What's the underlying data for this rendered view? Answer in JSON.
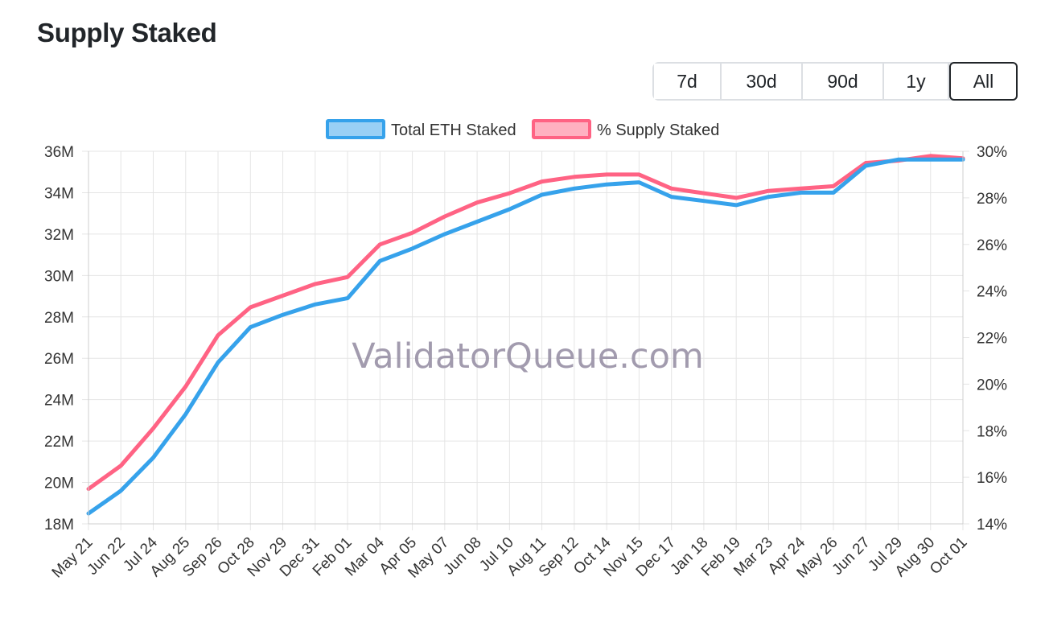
{
  "page": {
    "title": "Supply Staked"
  },
  "range_buttons": [
    {
      "label": "7d",
      "active": false
    },
    {
      "label": "30d",
      "active": false
    },
    {
      "label": "90d",
      "active": false
    },
    {
      "label": "1y",
      "active": false
    },
    {
      "label": "All",
      "active": true
    }
  ],
  "watermark": "ValidatorQueue.com",
  "colors": {
    "blue_line": "#36a2eb",
    "blue_fill": "#9ad0f5",
    "red_line": "#ff6384",
    "red_fill": "#ffb1c1",
    "grid": "#e5e5e5"
  },
  "chart_data": {
    "type": "line",
    "title": "Supply Staked",
    "x": [
      "May 21",
      "Jun 22",
      "Jul 24",
      "Aug 25",
      "Sep 26",
      "Oct 28",
      "Nov 29",
      "Dec 31",
      "Feb 01",
      "Mar 04",
      "Apr 05",
      "May 07",
      "Jun 08",
      "Jul 10",
      "Aug 11",
      "Sep 12",
      "Oct 14",
      "Nov 15",
      "Dec 17",
      "Jan 18",
      "Feb 19",
      "Mar 23",
      "Apr 24",
      "May 26",
      "Jun 27",
      "Jul 29",
      "Aug 30",
      "Oct 01"
    ],
    "y_left": {
      "label": "",
      "ylim": [
        18,
        36
      ],
      "ticks": [
        "18M",
        "20M",
        "22M",
        "24M",
        "26M",
        "28M",
        "30M",
        "32M",
        "34M",
        "36M"
      ]
    },
    "y_right": {
      "label": "",
      "ylim": [
        14,
        30
      ],
      "ticks": [
        "14%",
        "16%",
        "18%",
        "20%",
        "22%",
        "24%",
        "26%",
        "28%",
        "30%"
      ]
    },
    "legend": {
      "position": "top-center"
    },
    "series": [
      {
        "name": "Total ETH Staked",
        "axis": "left",
        "unit": "M ETH",
        "values": [
          18.5,
          19.6,
          21.2,
          23.3,
          25.8,
          27.5,
          28.1,
          28.6,
          28.9,
          30.7,
          31.3,
          32.0,
          32.6,
          33.2,
          33.9,
          34.2,
          34.4,
          34.5,
          33.8,
          33.6,
          33.4,
          33.8,
          34.0,
          34.0,
          35.3,
          35.6,
          35.6,
          35.6
        ]
      },
      {
        "name": "% Supply Staked",
        "axis": "right",
        "unit": "%",
        "values": [
          15.5,
          16.5,
          18.1,
          19.9,
          22.1,
          23.3,
          23.8,
          24.3,
          24.6,
          26.0,
          26.5,
          27.2,
          27.8,
          28.2,
          28.7,
          28.9,
          29.0,
          29.0,
          28.4,
          28.2,
          28.0,
          28.3,
          28.4,
          28.5,
          29.5,
          29.6,
          29.8,
          29.7
        ]
      }
    ]
  }
}
